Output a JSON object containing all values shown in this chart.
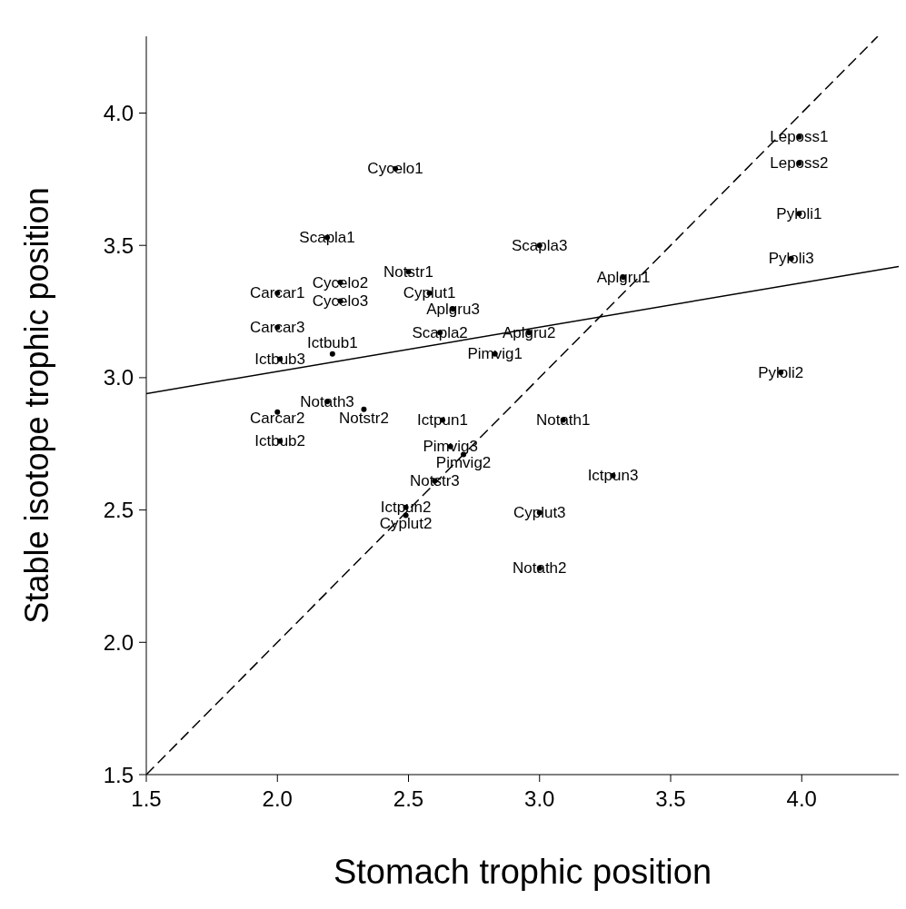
{
  "chart_data": {
    "type": "scatter",
    "xlabel": "Stomach trophic position",
    "ylabel": "Stable isotope trophic position",
    "xlim": [
      1.5,
      4.37
    ],
    "ylim": [
      1.5,
      4.29
    ],
    "xticks": [
      1.5,
      {
        "value": 2,
        "label": "2.0"
      },
      2.5,
      {
        "value": 3,
        "label": "3.0"
      },
      3.5,
      {
        "value": 4,
        "label": "4.0"
      }
    ],
    "yticks": [
      1.5,
      {
        "value": 2,
        "label": "2.0"
      },
      2.5,
      {
        "value": 3,
        "label": "3.0"
      },
      3.5,
      {
        "value": 4,
        "label": "4.0"
      }
    ],
    "series": [
      {
        "type": "scatter",
        "color": "#000000",
        "marker": "circle",
        "x": [
          3.99,
          3.99,
          3.99,
          3.96,
          3.92,
          2.45,
          2.19,
          3.0,
          3.32,
          2.5,
          2.24,
          2.0,
          2.58,
          2.24,
          2.67,
          2.0,
          2.62,
          2.96,
          2.01,
          2.21,
          2.83,
          2.19,
          2.0,
          2.33,
          2.63,
          3.09,
          2.01,
          2.66,
          2.71,
          2.6,
          3.28,
          2.49,
          2.49,
          3.0,
          3.0
        ],
        "values": [
          3.91,
          3.81,
          3.62,
          3.45,
          3.02,
          3.79,
          3.53,
          3.5,
          3.38,
          3.4,
          3.36,
          3.32,
          3.32,
          3.29,
          3.26,
          3.19,
          3.17,
          3.17,
          3.07,
          3.09,
          3.09,
          2.91,
          2.87,
          2.88,
          2.84,
          2.84,
          2.76,
          2.74,
          2.71,
          2.61,
          2.63,
          2.51,
          2.48,
          2.49,
          2.28
        ],
        "value_labels": [
          "Leposs1",
          "Leposs2",
          "Pyloli1",
          "Pyloli3",
          "Pyloli2",
          "Cycelo1",
          "Scapla1",
          "Scapla3",
          "Aplgru1",
          "Notstr1",
          "Cycelo2",
          "Carcar1",
          "Cyplut1",
          "Cycelo3",
          "Aplgru3",
          "Carcar3",
          "Scapla2",
          "Aplgru2",
          "Ictbub3",
          "Ictbub1",
          "Pimvig1",
          "Notath3",
          "Carcar2",
          "Notstr2",
          "Ictpun1",
          "Notath1",
          "Ictbub2",
          "Pimvig3",
          "Pimvig2",
          "Notstr3",
          "Ictpun3",
          "Ictpun2",
          "Cyplut2",
          "Cyplut3",
          "Notath2"
        ]
      },
      {
        "type": "line",
        "color": "#000000",
        "line_style": "solid",
        "x": [
          1.5,
          4.37
        ],
        "values": [
          2.94,
          3.42
        ]
      },
      {
        "type": "line",
        "color": "#000000",
        "line_style": "dashed",
        "x": [
          1.5,
          4.29
        ],
        "values": [
          1.5,
          4.29
        ]
      }
    ]
  }
}
